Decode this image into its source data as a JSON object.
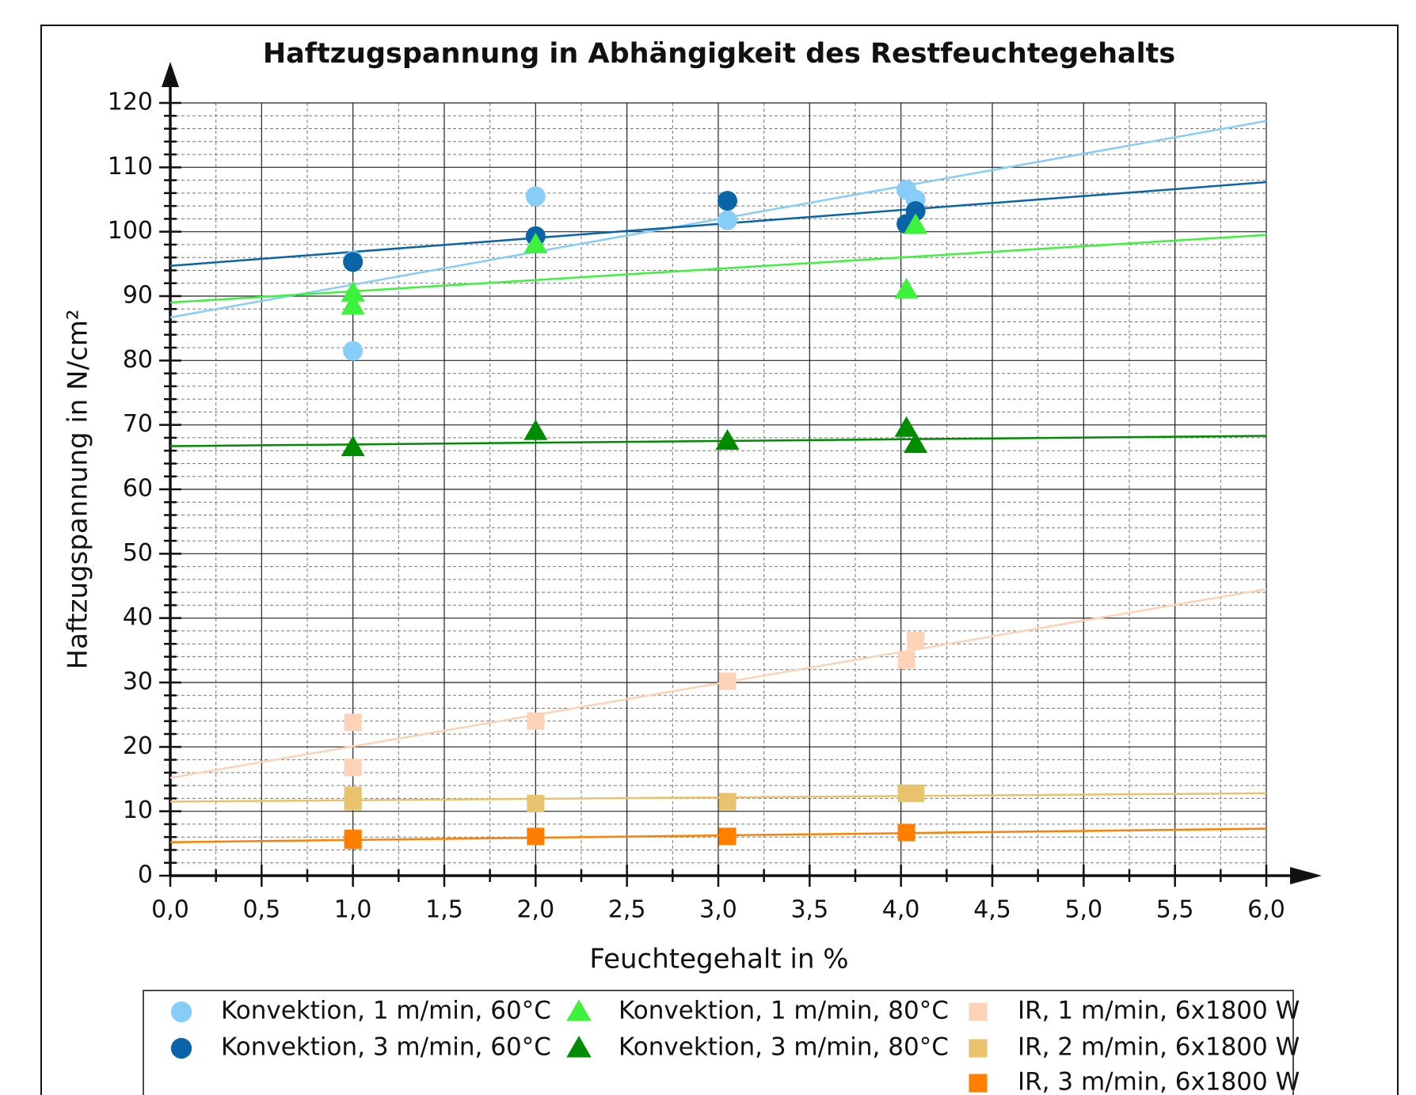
{
  "chart_data": {
    "type": "scatter",
    "title": "Haftzugspannung in Abhängigkeit des Restfeuchtegehalts",
    "x_label": "Feuchtegehalt in %",
    "y_label": "Haftzugspannung in N/cm²",
    "xlim": [
      0,
      6
    ],
    "ylim": [
      0,
      120
    ],
    "xticks": [
      {
        "value": 0,
        "label": "0,0"
      },
      {
        "value": 0.5,
        "label": "0,5"
      },
      {
        "value": 1,
        "label": "1,0"
      },
      {
        "value": 1.5,
        "label": "1,5"
      },
      {
        "value": 2,
        "label": "2,0"
      },
      {
        "value": 2.5,
        "label": "2,5"
      },
      {
        "value": 3,
        "label": "3,0"
      },
      {
        "value": 3.5,
        "label": "3,5"
      },
      {
        "value": 4,
        "label": "4,0"
      },
      {
        "value": 4.5,
        "label": "4,5"
      },
      {
        "value": 5,
        "label": "5,0"
      },
      {
        "value": 5.5,
        "label": "5,5"
      },
      {
        "value": 6,
        "label": "6,0"
      }
    ],
    "yticks": [
      0,
      10,
      20,
      30,
      40,
      50,
      60,
      70,
      80,
      90,
      100,
      110,
      120
    ],
    "grid": true,
    "legend": "bottom",
    "series": [
      {
        "name": "Konvektion, 1 m/min, 60°C",
        "color": "#86cdf7",
        "marker": "circle",
        "x": [
          1.0,
          1.0,
          2.0,
          3.05,
          4.03,
          4.08
        ],
        "values": [
          81.5,
          95.5,
          105.5,
          101.8,
          106.5,
          105
        ],
        "trend": {
          "x": [
            0,
            6
          ],
          "values": [
            86.7,
            117.2
          ]
        }
      },
      {
        "name": "Konvektion, 3 m/min, 60°C",
        "color": "#0a64a8",
        "marker": "circle",
        "x": [
          1.0,
          2.0,
          3.05,
          4.03,
          4.08
        ],
        "values": [
          95.3,
          99.3,
          104.8,
          101.2,
          103.2
        ],
        "trend": {
          "x": [
            0,
            6
          ],
          "values": [
            94.7,
            107.7
          ]
        }
      },
      {
        "name": "Konvektion, 1 m/min, 80°C",
        "color": "#3cf23c",
        "marker": "triangle",
        "x": [
          1.0,
          1.0,
          2.0,
          4.03,
          4.08
        ],
        "values": [
          90.5,
          88.5,
          98,
          91,
          101
        ],
        "trend": {
          "x": [
            0,
            6
          ],
          "values": [
            89,
            99.5
          ]
        }
      },
      {
        "name": "Konvektion, 3 m/min, 80°C",
        "color": "#008c00",
        "marker": "triangle",
        "x": [
          1.0,
          2.0,
          3.05,
          4.03,
          4.08
        ],
        "values": [
          66.5,
          69,
          67.5,
          69.5,
          67
        ],
        "trend": {
          "x": [
            0,
            6
          ],
          "values": [
            66.7,
            68.3
          ]
        }
      },
      {
        "name": "IR, 1 m/min, 6x1800 W",
        "color": "#fcd3b6",
        "marker": "square",
        "x": [
          1.0,
          1.0,
          2.0,
          3.05,
          4.03,
          4.08
        ],
        "values": [
          23.8,
          16.8,
          24,
          30.2,
          33.5,
          36.5
        ],
        "trend": {
          "x": [
            0,
            6
          ],
          "values": [
            15.2,
            44.5
          ]
        }
      },
      {
        "name": "IR, 2 m/min, 6x1800 W",
        "color": "#e8c26c",
        "marker": "square",
        "x": [
          1.0,
          1.0,
          2.0,
          3.05,
          4.03,
          4.08
        ],
        "values": [
          11.5,
          12.5,
          11.2,
          11.5,
          12.8,
          12.8
        ],
        "trend": {
          "x": [
            0,
            6
          ],
          "values": [
            11.5,
            12.8
          ]
        }
      },
      {
        "name": "IR, 3 m/min, 6x1800 W",
        "color": "#ff8000",
        "marker": "square",
        "x": [
          1.0,
          1.0,
          2.0,
          3.05,
          4.03
        ],
        "values": [
          5.5,
          5.8,
          6.1,
          6.1,
          6.7
        ],
        "trend": {
          "x": [
            0,
            6
          ],
          "values": [
            5.2,
            7.3
          ]
        }
      }
    ]
  }
}
